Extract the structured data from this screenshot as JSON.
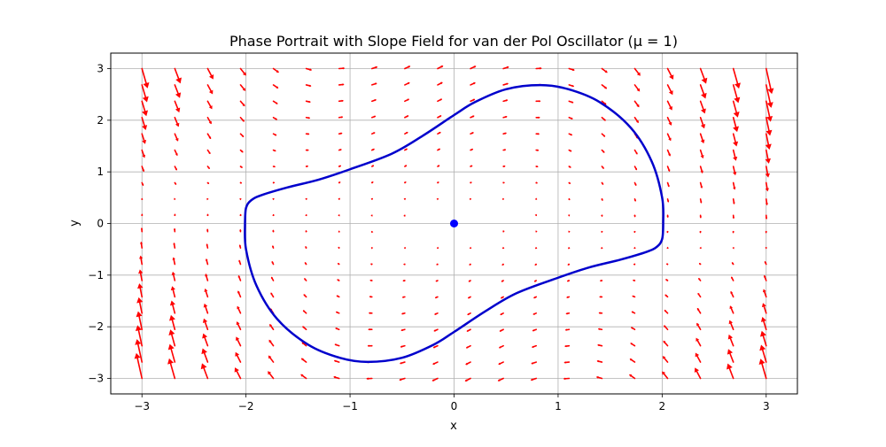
{
  "chart_data": {
    "type": "vector-field-with-trajectory",
    "title": "Phase Portrait with Slope Field for van der Pol Oscillator (μ = 1)",
    "xlabel": "x",
    "ylabel": "y",
    "xlim": [
      -3.3,
      3.3
    ],
    "ylim": [
      -3.3,
      3.3
    ],
    "xticks": [
      -3,
      -2,
      -1,
      0,
      1,
      2,
      3
    ],
    "yticks": [
      -3,
      -2,
      -1,
      0,
      1,
      2,
      3
    ],
    "xtick_labels": [
      "−3",
      "−2",
      "−1",
      "0",
      "1",
      "2",
      "3"
    ],
    "ytick_labels": [
      "−3",
      "−2",
      "−1",
      "0",
      "1",
      "2",
      "3"
    ],
    "grid": true,
    "mu": 1,
    "field": {
      "x_range": [
        -3,
        3
      ],
      "y_range": [
        -3,
        3
      ],
      "grid_count": 20,
      "color": "#ff0000"
    },
    "trajectory": {
      "color": "#0000cc",
      "points": [
        [
          -2.01,
          0.0
        ],
        [
          -2.0,
          0.3
        ],
        [
          -1.95,
          0.45
        ],
        [
          -1.85,
          0.55
        ],
        [
          -1.6,
          0.7
        ],
        [
          -1.3,
          0.85
        ],
        [
          -1.0,
          1.05
        ],
        [
          -0.6,
          1.35
        ],
        [
          -0.3,
          1.7
        ],
        [
          0.0,
          2.1
        ],
        [
          0.2,
          2.35
        ],
        [
          0.5,
          2.6
        ],
        [
          0.83,
          2.68
        ],
        [
          1.1,
          2.6
        ],
        [
          1.4,
          2.35
        ],
        [
          1.7,
          1.85
        ],
        [
          1.9,
          1.2
        ],
        [
          2.0,
          0.5
        ],
        [
          2.01,
          0.0
        ],
        [
          2.0,
          -0.3
        ],
        [
          1.95,
          -0.45
        ],
        [
          1.85,
          -0.55
        ],
        [
          1.6,
          -0.7
        ],
        [
          1.3,
          -0.85
        ],
        [
          1.0,
          -1.05
        ],
        [
          0.6,
          -1.35
        ],
        [
          0.3,
          -1.7
        ],
        [
          0.0,
          -2.1
        ],
        [
          -0.2,
          -2.35
        ],
        [
          -0.5,
          -2.6
        ],
        [
          -0.83,
          -2.68
        ],
        [
          -1.1,
          -2.6
        ],
        [
          -1.4,
          -2.35
        ],
        [
          -1.7,
          -1.85
        ],
        [
          -1.9,
          -1.2
        ],
        [
          -2.0,
          -0.5
        ],
        [
          -2.01,
          0.0
        ]
      ]
    },
    "equilibrium": {
      "x": 0,
      "y": 0,
      "color": "#0000ff"
    }
  }
}
